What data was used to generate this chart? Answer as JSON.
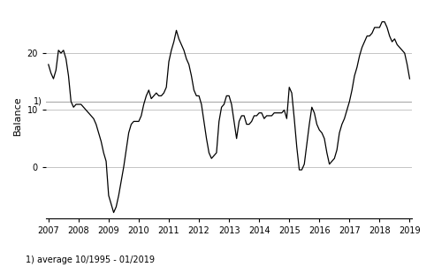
{
  "title": "",
  "ylabel": "Balance",
  "xlabel": "",
  "footnote": "1) average 10/1995 - 01/2019",
  "average_line": 11.5,
  "average_label": "1)",
  "ylim": [
    -9,
    27
  ],
  "yticks": [
    0,
    10,
    20
  ],
  "background_color": "#ffffff",
  "line_color": "#000000",
  "grid_color": "#bbbbbb",
  "avg_line_color": "#aaaaaa",
  "values": [
    18.0,
    16.5,
    15.5,
    17.0,
    20.5,
    20.0,
    20.5,
    19.0,
    16.0,
    11.5,
    10.5,
    11.0,
    11.0,
    11.0,
    10.5,
    10.0,
    9.5,
    9.0,
    8.5,
    7.5,
    6.0,
    4.5,
    2.5,
    1.0,
    -5.0,
    -6.5,
    -8.0,
    -7.0,
    -5.0,
    -2.5,
    0.0,
    3.0,
    6.0,
    7.5,
    8.0,
    8.0,
    8.0,
    9.0,
    11.0,
    12.5,
    13.5,
    12.0,
    12.5,
    13.0,
    12.5,
    12.5,
    13.0,
    14.0,
    18.5,
    20.5,
    22.0,
    24.0,
    22.5,
    21.5,
    20.5,
    19.0,
    18.0,
    16.0,
    13.5,
    12.5,
    12.5,
    11.0,
    8.0,
    5.0,
    2.5,
    1.5,
    2.0,
    2.5,
    8.0,
    10.5,
    11.0,
    12.5,
    12.5,
    11.0,
    8.0,
    5.0,
    8.0,
    9.0,
    9.0,
    7.5,
    7.5,
    8.0,
    9.0,
    9.0,
    9.5,
    9.5,
    8.5,
    9.0,
    9.0,
    9.0,
    9.5,
    9.5,
    9.5,
    9.5,
    10.0,
    8.5,
    14.0,
    13.0,
    8.5,
    3.5,
    -0.5,
    -0.5,
    0.5,
    4.0,
    7.5,
    10.5,
    9.5,
    7.5,
    6.5,
    6.0,
    5.0,
    2.5,
    0.5,
    1.0,
    1.5,
    3.0,
    6.0,
    7.5,
    8.5,
    10.0,
    11.5,
    13.5,
    16.0,
    17.5,
    19.5,
    21.0,
    22.0,
    23.0,
    23.0,
    23.5,
    24.5,
    24.5,
    24.5,
    25.5,
    25.5,
    24.5,
    23.0,
    22.0,
    22.5,
    21.5,
    21.0,
    20.5,
    20.0,
    18.0,
    15.5
  ],
  "year_start": 2007,
  "n_years": 13
}
